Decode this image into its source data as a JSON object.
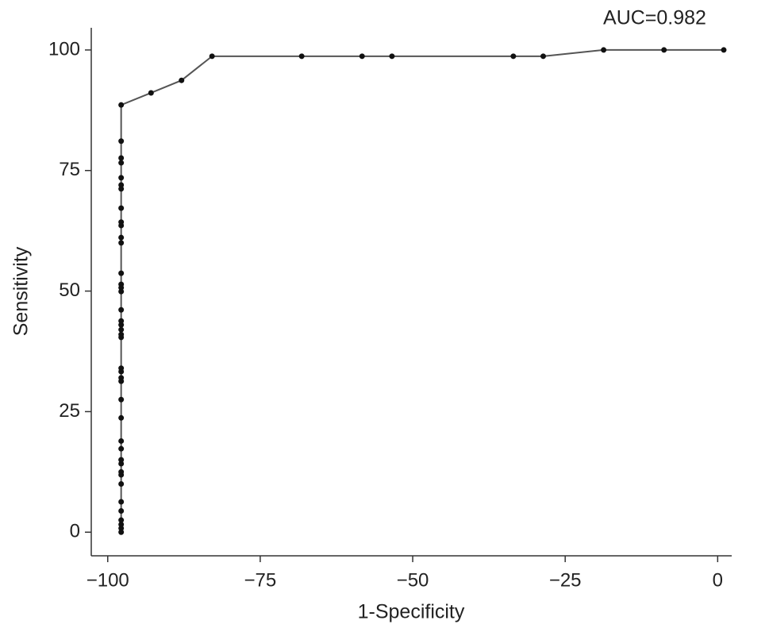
{
  "chart_data": {
    "type": "line",
    "annotation": "AUC=0.982",
    "x_label": "1-Specificity",
    "y_label": "Sensitivity",
    "xlim": [
      -102.7,
      2.3
    ],
    "ylim": [
      -4.9,
      104.6
    ],
    "xticks": [
      {
        "value": -100,
        "label": "−100"
      },
      {
        "value": -75,
        "label": "−75"
      },
      {
        "value": -50,
        "label": "−50"
      },
      {
        "value": -25,
        "label": "−25"
      },
      0
    ],
    "yticks": [
      0,
      25,
      50,
      75,
      100
    ],
    "line_color": "#555555",
    "marker_color": "#111111",
    "x": [
      -97.8,
      -97.8,
      -97.8,
      -97.8,
      -97.8,
      -97.8,
      -97.8,
      -97.8,
      -97.8,
      -97.8,
      -97.8,
      -97.8,
      -97.8,
      -97.8,
      -97.8,
      -97.8,
      -97.8,
      -97.8,
      -97.8,
      -97.8,
      -97.8,
      -97.8,
      -97.8,
      -97.8,
      -97.8,
      -97.8,
      -97.8,
      -97.8,
      -97.8,
      -97.8,
      -97.8,
      -97.8,
      -97.8,
      -97.8,
      -97.8,
      -97.8,
      -97.8,
      -97.8,
      -97.8,
      -97.8,
      -97.8,
      -92.9,
      -87.9,
      -82.9,
      -68.2,
      -58.3,
      -53.4,
      -33.5,
      -28.6,
      -18.7,
      -8.8,
      1.0
    ],
    "values": [
      0,
      0.8,
      1.6,
      2.5,
      4.4,
      6.3,
      10.0,
      11.9,
      12.5,
      14.2,
      15.0,
      17.3,
      18.9,
      23.7,
      27.5,
      31.3,
      32.0,
      33.3,
      34.0,
      40.4,
      41.0,
      42.0,
      43.0,
      43.8,
      46.1,
      49.9,
      50.7,
      51.4,
      53.7,
      60.0,
      61.1,
      63.6,
      64.3,
      67.2,
      71.2,
      72.0,
      73.5,
      76.6,
      77.6,
      81.1,
      88.6,
      91.1,
      93.7,
      98.7,
      98.7,
      98.7,
      98.7,
      98.7,
      98.7,
      100,
      100,
      100
    ]
  }
}
